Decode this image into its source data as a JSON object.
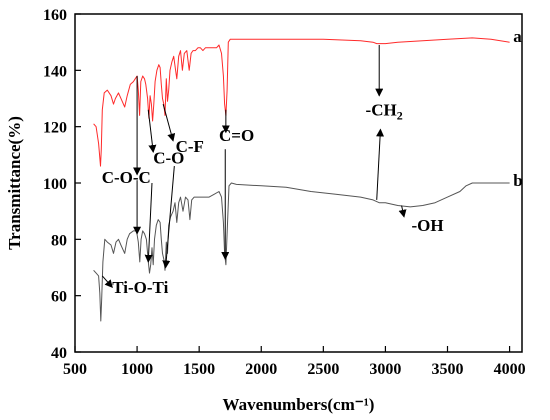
{
  "chart_data": {
    "type": "line",
    "title": "",
    "xlabel": "Wavenumbers(cm⁻¹)",
    "ylabel": "Transmittance(%)",
    "xlim": [
      500,
      4100
    ],
    "ylim": [
      40,
      160
    ],
    "xticks": [
      500,
      1000,
      1500,
      2000,
      2500,
      3000,
      3500,
      4000
    ],
    "yticks": [
      40,
      60,
      80,
      100,
      120,
      140,
      160
    ],
    "grid": false,
    "legend": "none",
    "series": [
      {
        "name": "a",
        "color": "#ff2a2a",
        "points": [
          [
            650,
            121
          ],
          [
            670,
            120
          ],
          [
            690,
            114
          ],
          [
            705,
            106
          ],
          [
            712,
            112
          ],
          [
            720,
            126
          ],
          [
            735,
            132
          ],
          [
            760,
            133
          ],
          [
            790,
            131
          ],
          [
            810,
            128
          ],
          [
            825,
            130
          ],
          [
            850,
            132
          ],
          [
            880,
            129
          ],
          [
            900,
            127
          ],
          [
            920,
            131
          ],
          [
            945,
            135
          ],
          [
            970,
            136
          ],
          [
            985,
            137
          ],
          [
            1000,
            138
          ],
          [
            1010,
            133
          ],
          [
            1020,
            124
          ],
          [
            1030,
            136
          ],
          [
            1045,
            138
          ],
          [
            1060,
            137
          ],
          [
            1070,
            135
          ],
          [
            1085,
            130
          ],
          [
            1095,
            123
          ],
          [
            1105,
            131
          ],
          [
            1115,
            128
          ],
          [
            1125,
            122
          ],
          [
            1135,
            128
          ],
          [
            1145,
            136
          ],
          [
            1160,
            140
          ],
          [
            1175,
            142
          ],
          [
            1185,
            141
          ],
          [
            1195,
            135
          ],
          [
            1205,
            130
          ],
          [
            1215,
            128
          ],
          [
            1225,
            124
          ],
          [
            1235,
            137
          ],
          [
            1245,
            129
          ],
          [
            1255,
            133
          ],
          [
            1265,
            140
          ],
          [
            1280,
            143
          ],
          [
            1295,
            145
          ],
          [
            1310,
            140
          ],
          [
            1320,
            137
          ],
          [
            1335,
            145
          ],
          [
            1350,
            147
          ],
          [
            1365,
            140
          ],
          [
            1380,
            146
          ],
          [
            1400,
            147
          ],
          [
            1420,
            140
          ],
          [
            1435,
            146
          ],
          [
            1450,
            147
          ],
          [
            1470,
            147
          ],
          [
            1490,
            148
          ],
          [
            1510,
            148
          ],
          [
            1530,
            147
          ],
          [
            1550,
            148
          ],
          [
            1580,
            148
          ],
          [
            1610,
            148
          ],
          [
            1640,
            148
          ],
          [
            1660,
            149
          ],
          [
            1680,
            146
          ],
          [
            1695,
            138
          ],
          [
            1705,
            128
          ],
          [
            1715,
            124
          ],
          [
            1725,
            133
          ],
          [
            1735,
            150
          ],
          [
            1750,
            151
          ],
          [
            1800,
            151
          ],
          [
            1900,
            151
          ],
          [
            2000,
            151
          ],
          [
            2200,
            151
          ],
          [
            2500,
            151
          ],
          [
            2800,
            150.5
          ],
          [
            2900,
            150
          ],
          [
            2930,
            149.5
          ],
          [
            2960,
            149.5
          ],
          [
            3000,
            149.5
          ],
          [
            3100,
            150
          ],
          [
            3300,
            150.5
          ],
          [
            3500,
            151
          ],
          [
            3700,
            151.5
          ],
          [
            3850,
            151
          ],
          [
            4000,
            150
          ]
        ]
      },
      {
        "name": "b",
        "color": "#555555",
        "points": [
          [
            650,
            69
          ],
          [
            670,
            68
          ],
          [
            690,
            67
          ],
          [
            700,
            61
          ],
          [
            708,
            51
          ],
          [
            715,
            59
          ],
          [
            725,
            72
          ],
          [
            740,
            80
          ],
          [
            760,
            79
          ],
          [
            790,
            78
          ],
          [
            810,
            75
          ],
          [
            830,
            79
          ],
          [
            850,
            80
          ],
          [
            870,
            78
          ],
          [
            900,
            75
          ],
          [
            920,
            80
          ],
          [
            940,
            82
          ],
          [
            970,
            83
          ],
          [
            995,
            83
          ],
          [
            1010,
            79
          ],
          [
            1022,
            72
          ],
          [
            1032,
            80
          ],
          [
            1045,
            83
          ],
          [
            1060,
            82
          ],
          [
            1075,
            80
          ],
          [
            1090,
            72
          ],
          [
            1100,
            68
          ],
          [
            1110,
            71
          ],
          [
            1120,
            77
          ],
          [
            1130,
            71
          ],
          [
            1140,
            80
          ],
          [
            1155,
            85
          ],
          [
            1170,
            87
          ],
          [
            1185,
            86
          ],
          [
            1195,
            80
          ],
          [
            1205,
            75
          ],
          [
            1215,
            73
          ],
          [
            1225,
            69
          ],
          [
            1235,
            79
          ],
          [
            1245,
            75
          ],
          [
            1255,
            85
          ],
          [
            1270,
            88
          ],
          [
            1290,
            90
          ],
          [
            1305,
            93
          ],
          [
            1320,
            86
          ],
          [
            1335,
            93
          ],
          [
            1350,
            95
          ],
          [
            1370,
            90
          ],
          [
            1390,
            95
          ],
          [
            1410,
            94
          ],
          [
            1425,
            87
          ],
          [
            1440,
            94
          ],
          [
            1460,
            95
          ],
          [
            1500,
            95
          ],
          [
            1540,
            95
          ],
          [
            1580,
            95
          ],
          [
            1620,
            96
          ],
          [
            1660,
            97
          ],
          [
            1680,
            95
          ],
          [
            1695,
            86
          ],
          [
            1705,
            75
          ],
          [
            1715,
            71
          ],
          [
            1725,
            82
          ],
          [
            1740,
            99
          ],
          [
            1760,
            100
          ],
          [
            1800,
            99.5
          ],
          [
            2000,
            99
          ],
          [
            2200,
            98.5
          ],
          [
            2400,
            97
          ],
          [
            2600,
            96
          ],
          [
            2800,
            95
          ],
          [
            2900,
            94
          ],
          [
            2950,
            93
          ],
          [
            3000,
            93
          ],
          [
            3100,
            92
          ],
          [
            3200,
            91.5
          ],
          [
            3300,
            92
          ],
          [
            3400,
            93
          ],
          [
            3500,
            95
          ],
          [
            3600,
            97
          ],
          [
            3650,
            99
          ],
          [
            3700,
            100
          ],
          [
            3800,
            100
          ],
          [
            4000,
            100
          ]
        ]
      }
    ],
    "annotations": [
      {
        "text": "C-O-C",
        "x": 715,
        "y": 100
      },
      {
        "text": "C-O",
        "x": 1130,
        "y": 107
      },
      {
        "text": "C-F",
        "x": 1310,
        "y": 111
      },
      {
        "text": "C=O",
        "x": 1660,
        "y": 115
      },
      {
        "text": "-CH",
        "sub": "2",
        "x": 2840,
        "y": 124
      },
      {
        "text": "-OH",
        "x": 3210,
        "y": 83
      },
      {
        "text": "Ti-O-Ti",
        "x": 800,
        "y": 61
      },
      {
        "text": "a",
        "x": 4030,
        "y": 150
      },
      {
        "text": "b",
        "x": 4030,
        "y": 99
      }
    ]
  }
}
